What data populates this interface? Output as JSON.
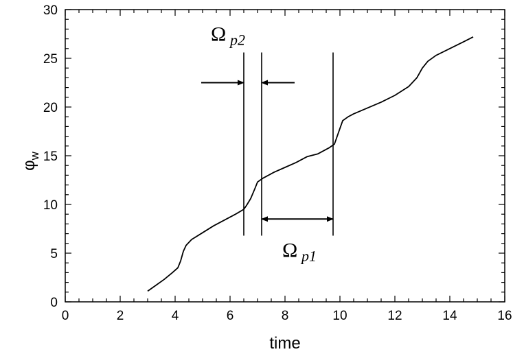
{
  "chart_data": {
    "type": "line",
    "title": "",
    "xlabel": "time",
    "ylabel_main": "φ",
    "ylabel_sub": "w",
    "xlim": [
      0,
      16
    ],
    "ylim": [
      0,
      30
    ],
    "x_ticks": [
      0,
      2,
      4,
      6,
      8,
      10,
      12,
      14,
      16
    ],
    "y_ticks": [
      0,
      5,
      10,
      15,
      20,
      25,
      30
    ],
    "grid": false,
    "series": [
      {
        "x": [
          3.0,
          3.3,
          3.6,
          3.9,
          4.1,
          4.2,
          4.3,
          4.4,
          4.6,
          5.0,
          5.4,
          5.8,
          6.2,
          6.5,
          6.6,
          6.75,
          6.9,
          7.0,
          7.2,
          7.6,
          8.0,
          8.4,
          8.8,
          9.2,
          9.6,
          9.8,
          9.9,
          10.0,
          10.1,
          10.3,
          10.5,
          11.0,
          11.5,
          12.0,
          12.5,
          12.8,
          13.0,
          13.2,
          13.5,
          14.0,
          14.5,
          14.85
        ],
        "y": [
          1.1,
          1.7,
          2.3,
          3.0,
          3.5,
          4.2,
          5.2,
          5.8,
          6.4,
          7.1,
          7.8,
          8.4,
          9.0,
          9.5,
          9.9,
          10.6,
          11.6,
          12.3,
          12.7,
          13.3,
          13.8,
          14.3,
          14.9,
          15.2,
          15.8,
          16.2,
          17.0,
          17.8,
          18.6,
          19.0,
          19.3,
          19.9,
          20.5,
          21.2,
          22.1,
          23.0,
          24.0,
          24.7,
          25.3,
          26.0,
          26.7,
          27.2
        ]
      }
    ],
    "annotations": {
      "vlines": [
        {
          "x": 6.5,
          "y_from": 6.8,
          "y_to": 25.6
        },
        {
          "x": 7.15,
          "y_from": 6.8,
          "y_to": 25.6
        },
        {
          "x": 9.75,
          "y_from": 6.8,
          "y_to": 25.6
        }
      ],
      "omega_p2": {
        "symbol": "Ω",
        "subscript": "p2",
        "x": 5.3,
        "y": 26.8
      },
      "omega_p1": {
        "symbol": "Ω",
        "subscript": "p1",
        "x": 7.9,
        "y": 4.6
      },
      "arrow_p2_left": {
        "x_from": 4.95,
        "x_to": 6.5,
        "y": 22.5
      },
      "arrow_p2_right": {
        "x_from": 8.35,
        "x_to": 7.15,
        "y": 22.5
      },
      "arrow_p1_double": {
        "x_from": 7.15,
        "x_to": 9.75,
        "y": 8.5
      }
    }
  }
}
